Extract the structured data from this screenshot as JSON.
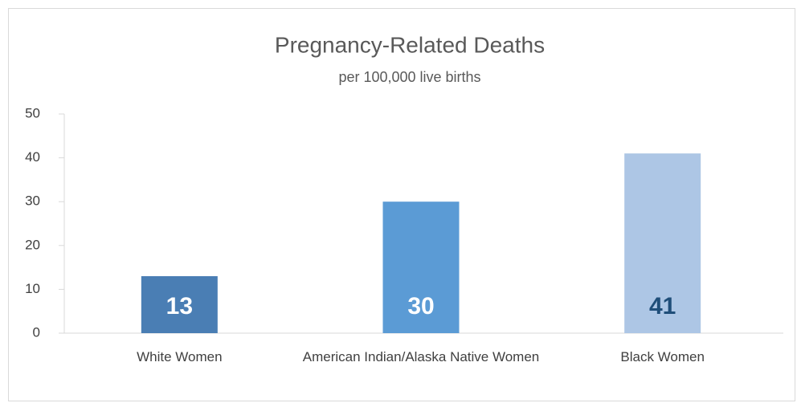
{
  "chart_data": {
    "type": "bar",
    "title": "Pregnancy-Related Deaths",
    "subtitle": "per 100,000 live births",
    "categories": [
      "White Women",
      "American Indian/Alaska Native Women",
      "Black Women"
    ],
    "values": [
      13,
      30,
      41
    ],
    "colors": [
      "#4a7eb4",
      "#5b9bd5",
      "#adc6e5"
    ],
    "value_label_colors": [
      "#ffffff",
      "#ffffff",
      "#1f4e79"
    ],
    "ylim": [
      0,
      50
    ],
    "yticks": [
      0,
      10,
      20,
      30,
      40,
      50
    ],
    "grid": false
  }
}
